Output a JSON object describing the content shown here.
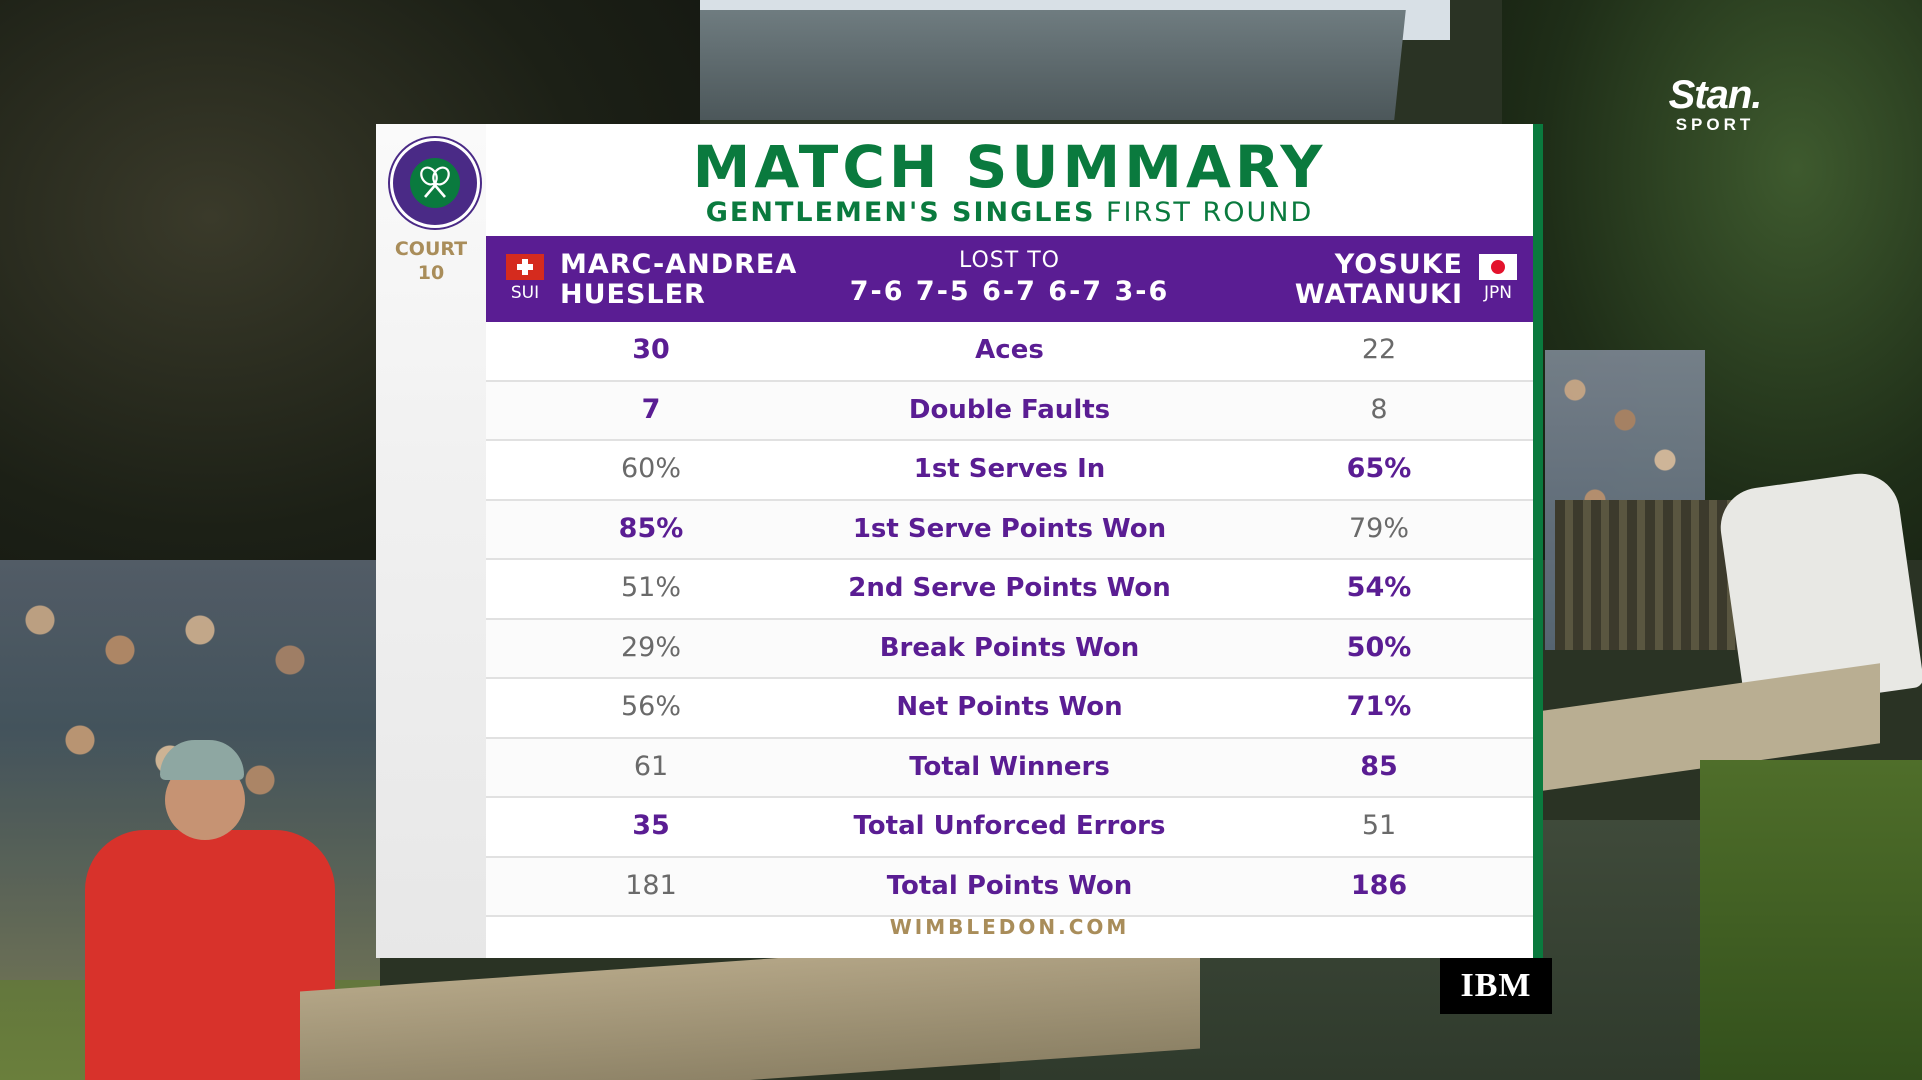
{
  "broadcast": {
    "stan_wordmark": "Stan.",
    "stan_sub": "SPORT",
    "ibm_logo": "IBM"
  },
  "panel": {
    "emblem_icon": "wimbledon-crossed-rackets-emblem",
    "court_label": "COURT",
    "court_number": "10",
    "title": "MATCH SUMMARY",
    "subtitle_event": "GENTLEMEN'S SINGLES",
    "subtitle_round": "FIRST ROUND",
    "player1": {
      "first": "MARC-ANDREA",
      "last": "HUESLER",
      "country": "SUI",
      "flag_icon": "switzerland-flag-icon"
    },
    "result_text": "LOST TO",
    "score": "7-6 7-5 6-7 6-7 3-6",
    "player2": {
      "first": "YOSUKE",
      "last": "WATANUKI",
      "country": "JPN",
      "flag_icon": "japan-flag-icon"
    },
    "stats": [
      {
        "label": "Aces",
        "p1": "30",
        "p2": "22",
        "leader": "p1"
      },
      {
        "label": "Double Faults",
        "p1": "7",
        "p2": "8",
        "leader": "p1"
      },
      {
        "label": "1st Serves In",
        "p1": "60%",
        "p2": "65%",
        "leader": "p2"
      },
      {
        "label": "1st Serve Points Won",
        "p1": "85%",
        "p2": "79%",
        "leader": "p1"
      },
      {
        "label": "2nd Serve Points Won",
        "p1": "51%",
        "p2": "54%",
        "leader": "p2"
      },
      {
        "label": "Break Points Won",
        "p1": "29%",
        "p2": "50%",
        "leader": "p2"
      },
      {
        "label": "Net Points Won",
        "p1": "56%",
        "p2": "71%",
        "leader": "p2"
      },
      {
        "label": "Total Winners",
        "p1": "61",
        "p2": "85",
        "leader": "p2"
      },
      {
        "label": "Total Unforced Errors",
        "p1": "35",
        "p2": "51",
        "leader": "p1"
      },
      {
        "label": "Total Points Won",
        "p1": "181",
        "p2": "186",
        "leader": "p2"
      }
    ],
    "site": "WIMBLEDON.COM"
  },
  "colors": {
    "wimbledon_purple": "#5a1d93",
    "wimbledon_green": "#0a7a3e",
    "gold": "#a98d5a"
  }
}
